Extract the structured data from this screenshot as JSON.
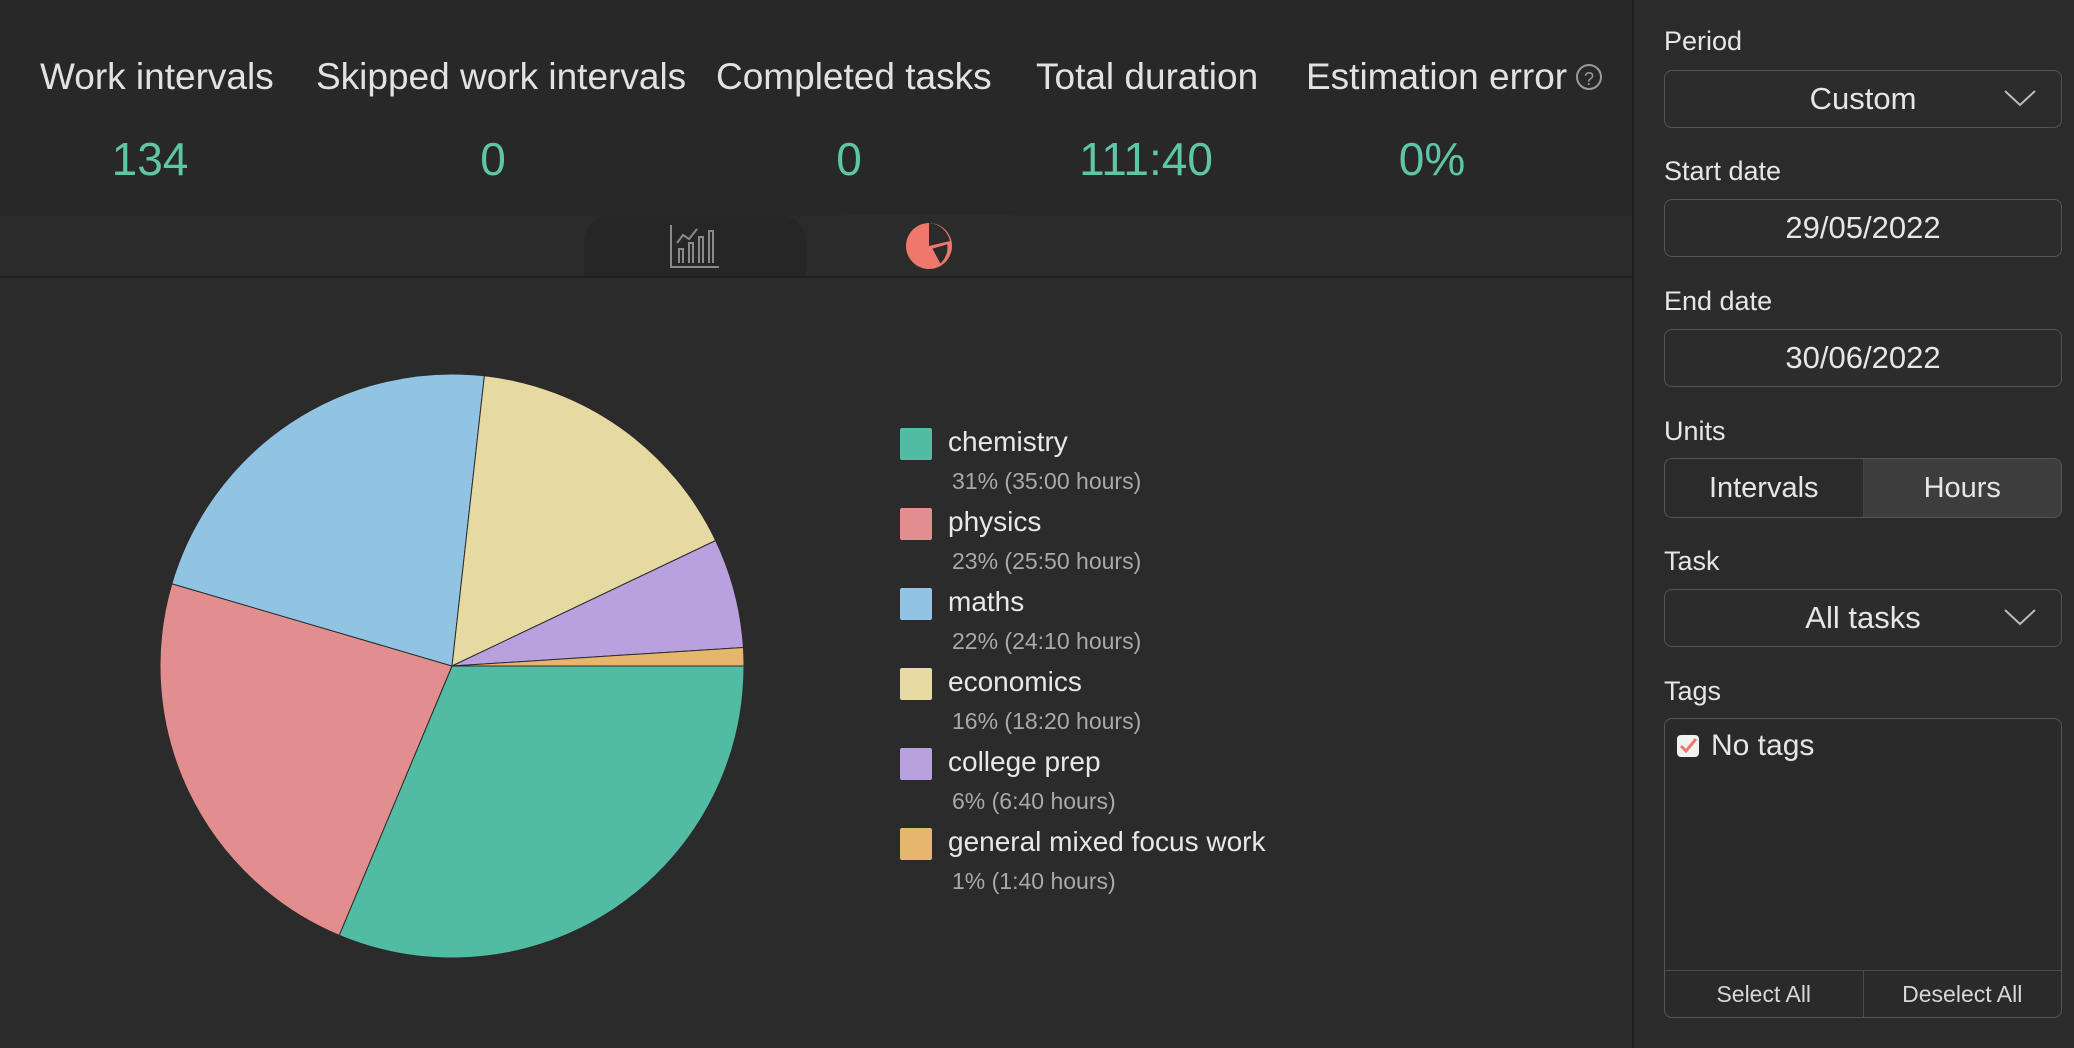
{
  "stats": [
    {
      "label": "Work intervals",
      "value": "134"
    },
    {
      "label": "Skipped work intervals",
      "value": "0"
    },
    {
      "label": "Completed tasks",
      "value": "0"
    },
    {
      "label": "Total duration",
      "value": "111:40"
    },
    {
      "label": "Estimation error",
      "value": "0%"
    }
  ],
  "tabs": [
    {
      "icon": "line-chart-icon",
      "active": false
    },
    {
      "icon": "pie-chart-icon",
      "active": true
    }
  ],
  "chart_data": {
    "type": "pie",
    "slices": [
      {
        "label": "chemistry",
        "value": 31,
        "detail": "31% (35:00 hours)",
        "color": "#52bba4"
      },
      {
        "label": "physics",
        "value": 23,
        "detail": "23% (25:50 hours)",
        "color": "#e38e8e"
      },
      {
        "label": "maths",
        "value": 22,
        "detail": "22% (24:10 hours)",
        "color": "#91c4e2"
      },
      {
        "label": "economics",
        "value": 16,
        "detail": "16% (18:20 hours)",
        "color": "#e6d9a1"
      },
      {
        "label": "college prep",
        "value": 6,
        "detail": "6% (6:40 hours)",
        "color": "#b9a1df"
      },
      {
        "label": "general mixed focus work",
        "value": 1,
        "detail": "1% (1:40 hours)",
        "color": "#e6b66e"
      }
    ]
  },
  "sidebar": {
    "period_label": "Period",
    "period_value": "Custom",
    "start_label": "Start date",
    "start_value": "29/05/2022",
    "end_label": "End date",
    "end_value": "30/06/2022",
    "units_label": "Units",
    "units_options": [
      "Intervals",
      "Hours"
    ],
    "units_selected": "Hours",
    "task_label": "Task",
    "task_value": "All tasks",
    "tags_label": "Tags",
    "tags": [
      {
        "label": "No tags",
        "checked": true
      }
    ],
    "select_all": "Select All",
    "deselect_all": "Deselect All"
  },
  "colors": {
    "accent": "#5ec6a6",
    "checkbox": "#f0786a"
  }
}
